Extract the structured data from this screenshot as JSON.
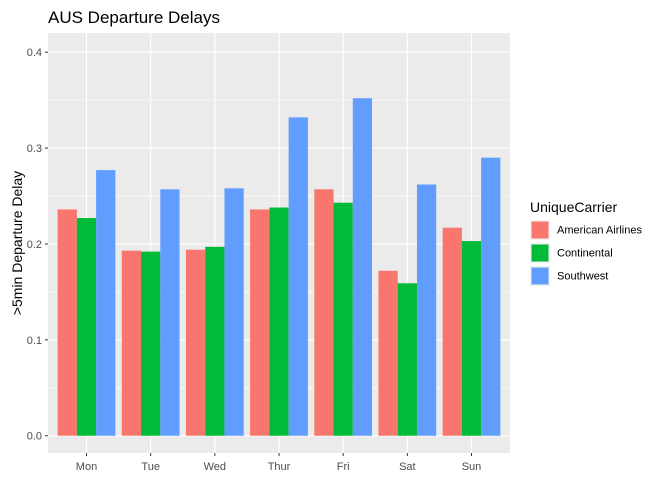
{
  "chart_data": {
    "type": "bar",
    "title": "AUS Departure Delays",
    "xlabel": "",
    "ylabel": ">5min Departure Delay",
    "categories": [
      "Mon",
      "Tue",
      "Wed",
      "Thur",
      "Fri",
      "Sat",
      "Sun"
    ],
    "series": [
      {
        "name": "American Airlines",
        "color": "#F8766D",
        "values": [
          0.236,
          0.193,
          0.194,
          0.236,
          0.257,
          0.172,
          0.217
        ]
      },
      {
        "name": "Continental",
        "color": "#00BA38",
        "values": [
          0.227,
          0.192,
          0.197,
          0.238,
          0.243,
          0.159,
          0.203
        ]
      },
      {
        "name": "Southwest",
        "color": "#619CFF",
        "values": [
          0.277,
          0.257,
          0.258,
          0.332,
          0.352,
          0.262,
          0.29
        ]
      }
    ],
    "ylim": [
      -0.018,
      0.42
    ],
    "yticks": [
      "0.0",
      "0.1",
      "0.2",
      "0.3",
      "0.4"
    ],
    "grid": true,
    "legend": {
      "title": "UniqueCarrier",
      "position": "right"
    },
    "panel_background": "#EBEBEB",
    "grid_color": "#FFFFFF"
  }
}
